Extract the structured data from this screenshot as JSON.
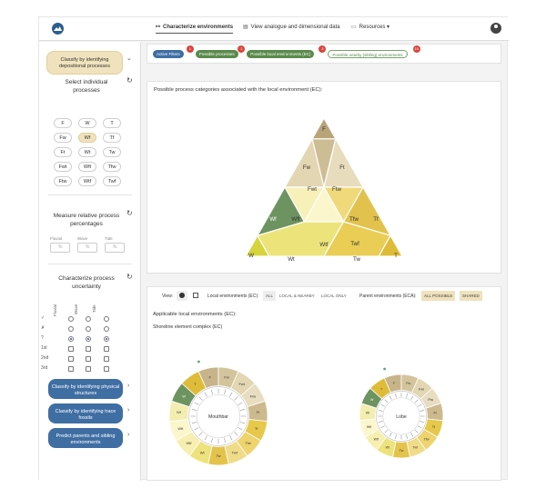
{
  "topbar": {
    "nav": [
      {
        "icon": "binoculars-icon",
        "label": "Characterize environments",
        "active": true
      },
      {
        "icon": "book-icon",
        "label": "View analogue and dimensional data",
        "active": false
      },
      {
        "icon": "folder-icon",
        "label": "Resources",
        "active": false
      }
    ],
    "resources_caret": "▾"
  },
  "sidebar": {
    "classify_depositional": "Classify by identifying depositional processes",
    "select_title": "Select individual processes",
    "tokens": [
      "F",
      "W",
      "T",
      "Fw",
      "Wf",
      "Tf",
      "Ft",
      "Wt",
      "Tw",
      "Fwt",
      "Wft",
      "Tfw",
      "Ftw",
      "Wtf",
      "Twf"
    ],
    "selected_token": "Wf",
    "measure_title": "Measure relative process percentages",
    "percent_fields": [
      {
        "label": "Fluvial",
        "value": "%"
      },
      {
        "label": "Wave",
        "value": "%"
      },
      {
        "label": "Tide",
        "value": "%"
      }
    ],
    "uncertainty_title": "Characterize process uncertainty",
    "uncertainty_cols": [
      "Fluvial",
      "Wave",
      "Tide"
    ],
    "uncertainty_rows": [
      "✓",
      "✗",
      "?",
      "1st",
      "2nd",
      "3rd"
    ],
    "structures_btn": "Classify by identifying physical structures",
    "trace_btn": "Classify by identifying trace fossils",
    "predict_btn": "Predict parents and sibling environments"
  },
  "filters": {
    "chips": [
      {
        "label": "Active Filters",
        "badge": "1",
        "color": "#3f6ea3"
      },
      {
        "label": "Possible processes",
        "badge": "1",
        "color": "#5a8a4c"
      },
      {
        "label": "Possible local environments (EC)",
        "badge": "3",
        "color": "#5a8a4c"
      },
      {
        "label": "Possible nearby (sibling) environments",
        "badge": "15",
        "color": "#ffffff"
      }
    ]
  },
  "triangle_panel": {
    "title": "Possible process categories associated with the local environment (EC):",
    "labels": [
      "F",
      "Fw",
      "Ft",
      "Fwt",
      "Ftw",
      "Wf",
      "Wft",
      "Tfw",
      "Tf",
      "Wtf",
      "Twf",
      "W",
      "Wt",
      "Tw",
      "T"
    ]
  },
  "view_panel": {
    "view_label": "View:",
    "local_label": "Local environments (EC):",
    "local_options": [
      "ALL",
      "LOCAL & NEARBY",
      "LOCAL ONLY"
    ],
    "parent_label": "Parent environments (ECA):",
    "parent_options": [
      "ALL POSSIBLE",
      "SHARED"
    ],
    "applicable_title": "Applicable local environments (EC):",
    "complex_title": "Shoreline element complex (EC)",
    "wheels": [
      {
        "name": "Mouthbar"
      },
      {
        "name": "Lobe"
      }
    ],
    "wheel_labels": [
      "F",
      "Fw",
      "Fwt",
      "Ftw",
      "Ft",
      "Tf",
      "Tfw",
      "Twf",
      "Tw",
      "Wt",
      "Wtf",
      "Wft",
      "Wf",
      "W",
      "T"
    ]
  },
  "colors": {
    "fluvial": "#c8b48a",
    "wave": "#5e8a4f",
    "tide": "#e6c84a",
    "accent_blue": "#3f6ea3",
    "tan": "#f0e2bd",
    "badge_red": "#d9463d"
  }
}
